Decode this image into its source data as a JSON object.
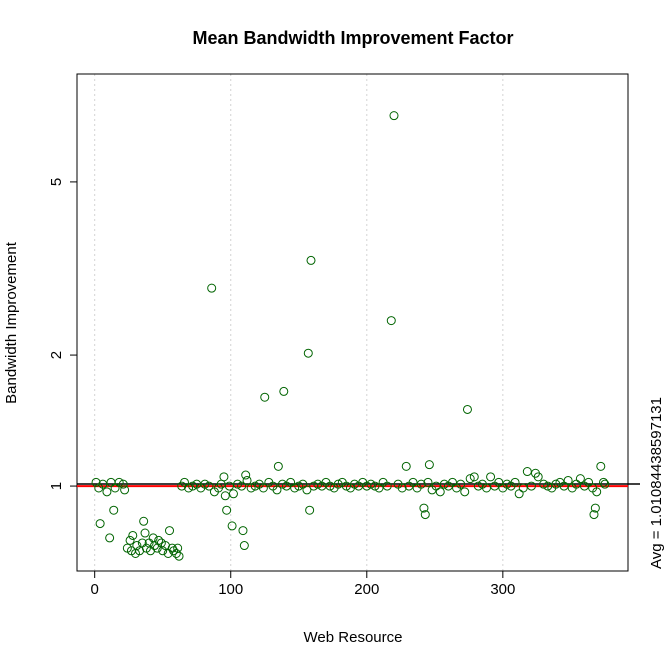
{
  "chart_data": {
    "type": "scatter",
    "title": "Mean Bandwidth Improvement Factor",
    "x_label": "Web Resource",
    "y_label": "Bandwidth Improvement",
    "annotation": "Avg = 1.01084438597131",
    "avg": 1.01084438597131,
    "reference": 1,
    "log_y": true,
    "grid": true,
    "color": "#006400",
    "avg_color": "#000000",
    "reference_color": "#ff0000",
    "xlim": [
      -13,
      392
    ],
    "xticks": [
      0,
      100,
      200,
      300
    ],
    "ylim": [
      0.638,
      8.85
    ],
    "yticks": [
      1,
      2,
      5
    ],
    "x": [
      1,
      3,
      6,
      9,
      12,
      15,
      18,
      21,
      22,
      64,
      66,
      69,
      72,
      75,
      78,
      81,
      84,
      88,
      91,
      93,
      96,
      99,
      102,
      105,
      108,
      112,
      115,
      118,
      121,
      124,
      128,
      131,
      134,
      138,
      141,
      144,
      147,
      150,
      153,
      156,
      161,
      164,
      167,
      170,
      173,
      176,
      179,
      182,
      185,
      188,
      191,
      194,
      197,
      200,
      203,
      206,
      209,
      212,
      215,
      223,
      226,
      231,
      234,
      237,
      240,
      245,
      248,
      251,
      254,
      257,
      260,
      263,
      266,
      269,
      272,
      276,
      279,
      282,
      285,
      288,
      291,
      294,
      297,
      300,
      303,
      306,
      309,
      312,
      315,
      318,
      321,
      324,
      326,
      330,
      333,
      336,
      339,
      342,
      345,
      348,
      351,
      354,
      357,
      360,
      363,
      366,
      369,
      372,
      374,
      375,
      24,
      26,
      27,
      28,
      30,
      31,
      33,
      35,
      36,
      37,
      38,
      40,
      41,
      43,
      44,
      46,
      47,
      49,
      50,
      52,
      54,
      55,
      57,
      58,
      60,
      61,
      62,
      86,
      125,
      139,
      157,
      159,
      218,
      220,
      274,
      246,
      229,
      135,
      111,
      95,
      4,
      11,
      14,
      101,
      109,
      110,
      97,
      158,
      242,
      243,
      367,
      368
    ],
    "values": [
      1.02,
      0.99,
      1.01,
      0.97,
      1.02,
      0.99,
      1.02,
      1.01,
      0.98,
      1.0,
      1.02,
      0.99,
      1.0,
      1.01,
      0.99,
      1.01,
      1.0,
      0.97,
      0.99,
      1.01,
      0.95,
      1.0,
      0.96,
      1.01,
      1.0,
      1.03,
      0.99,
      1.0,
      1.01,
      0.99,
      1.02,
      1.0,
      0.98,
      1.01,
      1.0,
      1.02,
      0.99,
      1.0,
      1.01,
      0.98,
      1.0,
      1.01,
      1.0,
      1.02,
      1.0,
      0.99,
      1.01,
      1.02,
      1.0,
      0.99,
      1.01,
      1.0,
      1.02,
      1.0,
      1.01,
      1.0,
      0.99,
      1.02,
      1.0,
      1.01,
      0.99,
      1.0,
      1.02,
      0.99,
      1.01,
      1.02,
      0.98,
      1.0,
      0.97,
      1.01,
      1.0,
      1.02,
      0.99,
      1.01,
      0.97,
      1.04,
      1.05,
      1.0,
      1.01,
      0.99,
      1.05,
      1.0,
      1.02,
      0.99,
      1.01,
      1.0,
      1.02,
      0.96,
      0.99,
      1.08,
      1.0,
      1.07,
      1.05,
      1.01,
      1.0,
      0.99,
      1.01,
      1.02,
      1.0,
      1.03,
      0.99,
      1.01,
      1.04,
      1.0,
      1.02,
      0.99,
      0.97,
      1.11,
      1.02,
      1.01,
      0.72,
      0.75,
      0.71,
      0.77,
      0.7,
      0.73,
      0.71,
      0.74,
      0.83,
      0.78,
      0.72,
      0.74,
      0.71,
      0.76,
      0.73,
      0.72,
      0.75,
      0.74,
      0.71,
      0.73,
      0.7,
      0.79,
      0.72,
      0.71,
      0.7,
      0.72,
      0.69,
      2.85,
      1.6,
      1.65,
      2.02,
      3.3,
      2.4,
      7.1,
      1.5,
      1.12,
      1.11,
      1.11,
      1.06,
      1.05,
      0.82,
      0.76,
      0.88,
      0.81,
      0.79,
      0.73,
      0.88,
      0.88,
      0.89,
      0.86,
      0.86,
      0.89
    ]
  }
}
